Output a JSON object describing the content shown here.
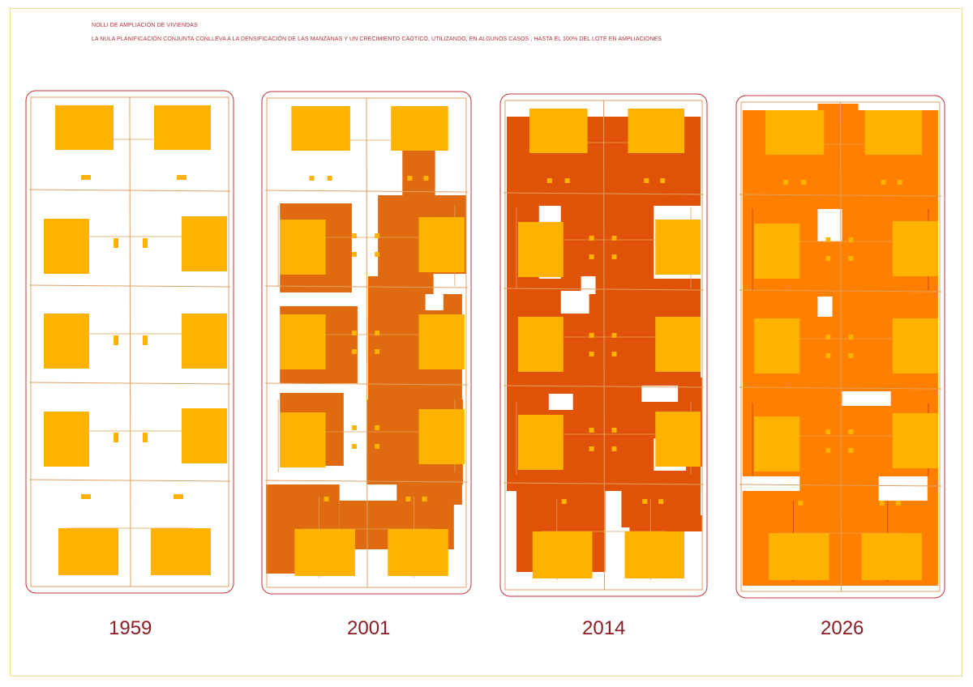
{
  "header": {
    "title": "NOLLI DE AMPLIACIÓN DE VIVIENDAS",
    "subtitle": "LA NULA PLANIFICACIÓN CONJUNTA CONLLEVA A LA DENSIFICACIÓN DE LAS MANZANAS Y UN CRECIMIENTO CAÓTICO, UTILIZANDO, EN ALGUNOS CASOS , HASTA EL 100% DEL LOTE EN AMPLIACIONES"
  },
  "panels": [
    {
      "year": "1959",
      "expansion_color": "#ffffff"
    },
    {
      "year": "2001",
      "expansion_color": "#e06a10"
    },
    {
      "year": "2014",
      "expansion_color": "#e05208"
    },
    {
      "year": "2026",
      "expansion_color": "#ff8000"
    }
  ],
  "colors": {
    "house": "#ffb300",
    "lot_line": "#e0a060",
    "border": "#c0303a",
    "year_text": "#8b1c24"
  }
}
